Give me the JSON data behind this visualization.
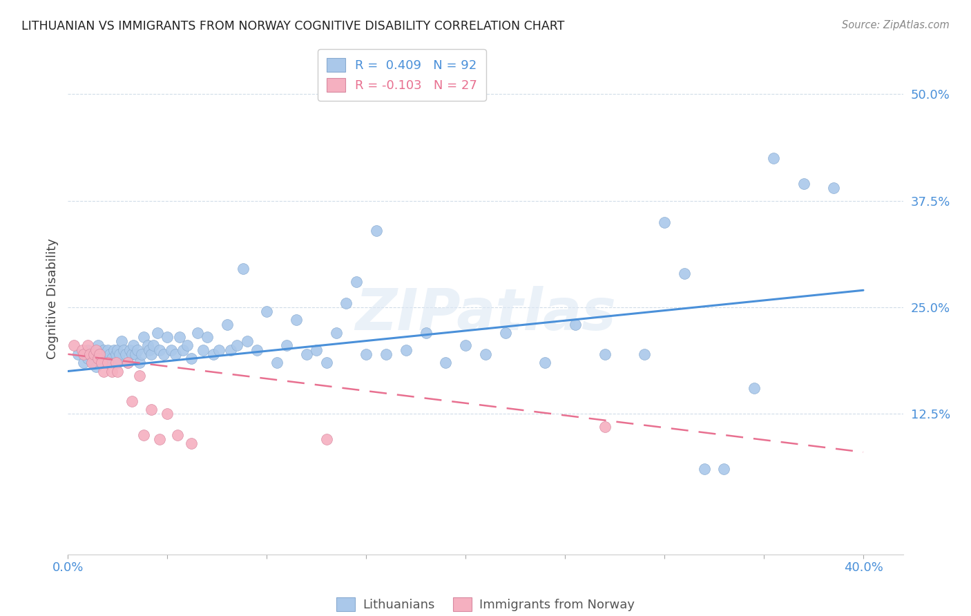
{
  "title": "LITHUANIAN VS IMMIGRANTS FROM NORWAY COGNITIVE DISABILITY CORRELATION CHART",
  "source": "Source: ZipAtlas.com",
  "ylabel": "Cognitive Disability",
  "ytick_labels": [
    "12.5%",
    "25.0%",
    "37.5%",
    "50.0%"
  ],
  "ytick_values": [
    0.125,
    0.25,
    0.375,
    0.5
  ],
  "xlim": [
    0.0,
    0.42
  ],
  "ylim": [
    -0.04,
    0.56
  ],
  "blue_line_color": "#4a90d9",
  "pink_line_color": "#e87090",
  "blue_dot_color": "#aac8ea",
  "pink_dot_color": "#f5b0c0",
  "watermark": "ZIPatlas",
  "legend_label_blue": "R =  0.409   N = 92",
  "legend_label_pink": "R = -0.103   N = 27",
  "blue_scatter_x": [
    0.005,
    0.008,
    0.01,
    0.01,
    0.012,
    0.013,
    0.014,
    0.015,
    0.015,
    0.016,
    0.017,
    0.018,
    0.018,
    0.019,
    0.02,
    0.02,
    0.021,
    0.022,
    0.022,
    0.023,
    0.024,
    0.025,
    0.025,
    0.026,
    0.027,
    0.028,
    0.029,
    0.03,
    0.031,
    0.032,
    0.033,
    0.034,
    0.035,
    0.036,
    0.037,
    0.038,
    0.04,
    0.041,
    0.042,
    0.043,
    0.045,
    0.046,
    0.048,
    0.05,
    0.052,
    0.054,
    0.056,
    0.058,
    0.06,
    0.062,
    0.065,
    0.068,
    0.07,
    0.073,
    0.076,
    0.08,
    0.082,
    0.085,
    0.088,
    0.09,
    0.095,
    0.1,
    0.105,
    0.11,
    0.115,
    0.12,
    0.125,
    0.13,
    0.135,
    0.14,
    0.145,
    0.15,
    0.155,
    0.16,
    0.17,
    0.18,
    0.19,
    0.2,
    0.21,
    0.22,
    0.24,
    0.255,
    0.27,
    0.29,
    0.3,
    0.31,
    0.32,
    0.33,
    0.345,
    0.355,
    0.37,
    0.385
  ],
  "blue_scatter_y": [
    0.195,
    0.185,
    0.2,
    0.19,
    0.195,
    0.185,
    0.18,
    0.195,
    0.205,
    0.19,
    0.185,
    0.2,
    0.195,
    0.185,
    0.2,
    0.19,
    0.195,
    0.185,
    0.19,
    0.2,
    0.195,
    0.185,
    0.2,
    0.195,
    0.21,
    0.2,
    0.195,
    0.185,
    0.2,
    0.195,
    0.205,
    0.195,
    0.2,
    0.185,
    0.195,
    0.215,
    0.205,
    0.2,
    0.195,
    0.205,
    0.22,
    0.2,
    0.195,
    0.215,
    0.2,
    0.195,
    0.215,
    0.2,
    0.205,
    0.19,
    0.22,
    0.2,
    0.215,
    0.195,
    0.2,
    0.23,
    0.2,
    0.205,
    0.295,
    0.21,
    0.2,
    0.245,
    0.185,
    0.205,
    0.235,
    0.195,
    0.2,
    0.185,
    0.22,
    0.255,
    0.28,
    0.195,
    0.34,
    0.195,
    0.2,
    0.22,
    0.185,
    0.205,
    0.195,
    0.22,
    0.185,
    0.23,
    0.195,
    0.195,
    0.35,
    0.29,
    0.06,
    0.06,
    0.155,
    0.425,
    0.395,
    0.39
  ],
  "pink_scatter_x": [
    0.003,
    0.007,
    0.008,
    0.01,
    0.011,
    0.012,
    0.013,
    0.014,
    0.015,
    0.016,
    0.017,
    0.018,
    0.02,
    0.022,
    0.024,
    0.025,
    0.03,
    0.032,
    0.036,
    0.038,
    0.042,
    0.046,
    0.05,
    0.055,
    0.062,
    0.13,
    0.27
  ],
  "pink_scatter_y": [
    0.205,
    0.2,
    0.195,
    0.205,
    0.195,
    0.185,
    0.195,
    0.2,
    0.19,
    0.195,
    0.185,
    0.175,
    0.185,
    0.175,
    0.185,
    0.175,
    0.185,
    0.14,
    0.17,
    0.1,
    0.13,
    0.095,
    0.125,
    0.1,
    0.09,
    0.095,
    0.11
  ],
  "blue_line_y_start": 0.175,
  "blue_line_y_end": 0.27,
  "pink_line_y_start": 0.195,
  "pink_line_y_end": 0.08,
  "xtick_positions": [
    0.0,
    0.05,
    0.1,
    0.15,
    0.2,
    0.25,
    0.3,
    0.35,
    0.4
  ],
  "bottom_legend_blue": "Lithuanians",
  "bottom_legend_pink": "Immigrants from Norway"
}
